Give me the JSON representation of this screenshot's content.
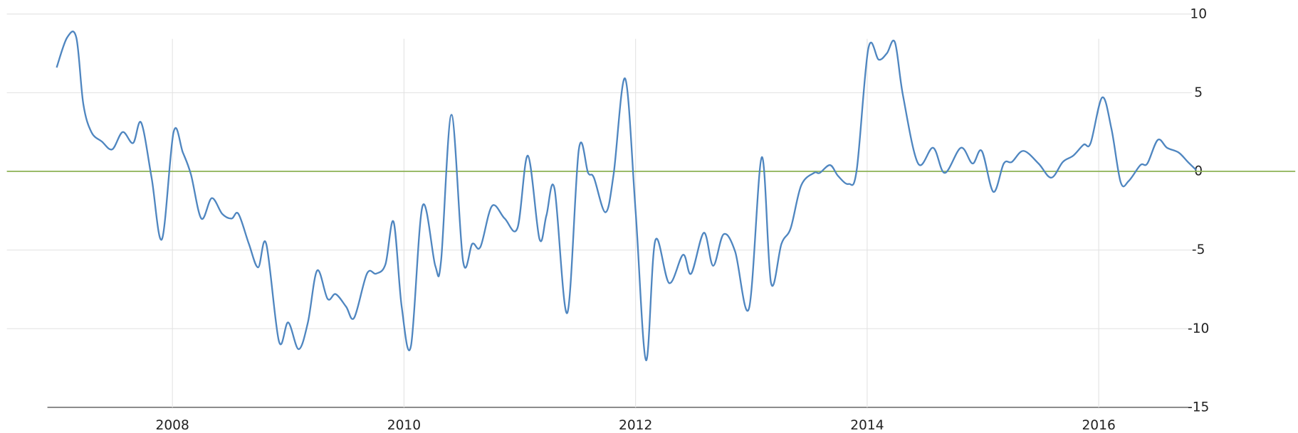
{
  "chart_data": {
    "type": "line",
    "x": [
      2007.0,
      2007.09,
      2007.17,
      2007.23,
      2007.3,
      2007.39,
      2007.48,
      2007.57,
      2007.66,
      2007.73,
      2007.82,
      2007.91,
      2008.01,
      2008.09,
      2008.16,
      2008.25,
      2008.34,
      2008.43,
      2008.51,
      2008.57,
      2008.66,
      2008.74,
      2008.81,
      2008.92,
      2009.0,
      2009.09,
      2009.17,
      2009.25,
      2009.34,
      2009.41,
      2009.5,
      2009.57,
      2009.68,
      2009.76,
      2009.84,
      2009.91,
      2009.98,
      2010.06,
      2010.16,
      2010.27,
      2010.32,
      2010.41,
      2010.51,
      2010.59,
      2010.66,
      2010.76,
      2010.87,
      2010.98,
      2011.07,
      2011.17,
      2011.23,
      2011.3,
      2011.41,
      2011.51,
      2011.59,
      2011.64,
      2011.74,
      2011.81,
      2011.91,
      2012.0,
      2012.09,
      2012.17,
      2012.29,
      2012.41,
      2012.48,
      2012.59,
      2012.67,
      2012.76,
      2012.86,
      2012.98,
      2013.09,
      2013.17,
      2013.26,
      2013.34,
      2013.43,
      2013.54,
      2013.59,
      2013.68,
      2013.75,
      2013.84,
      2013.91,
      2014.01,
      2014.1,
      2014.17,
      2014.24,
      2014.31,
      2014.44,
      2014.57,
      2014.67,
      2014.81,
      2014.91,
      2014.99,
      2015.09,
      2015.18,
      2015.25,
      2015.35,
      2015.48,
      2015.59,
      2015.69,
      2015.78,
      2015.87,
      2015.93,
      2016.03,
      2016.11,
      2016.19,
      2016.26,
      2016.36,
      2016.42,
      2016.51,
      2016.59,
      2016.69,
      2016.77,
      2016.84
    ],
    "series": [
      {
        "color": "#4f86c0",
        "values": [
          6.6,
          8.5,
          8.5,
          4.3,
          2.5,
          1.9,
          1.4,
          2.5,
          1.8,
          3.1,
          -0.4,
          -4.3,
          2.5,
          1.2,
          -0.2,
          -3.0,
          -1.7,
          -2.7,
          -3.0,
          -2.7,
          -4.6,
          -6.1,
          -4.6,
          -10.8,
          -9.6,
          -11.3,
          -9.6,
          -6.3,
          -8.1,
          -7.8,
          -8.6,
          -9.3,
          -6.5,
          -6.5,
          -5.9,
          -3.2,
          -8.6,
          -11.1,
          -2.2,
          -6.0,
          -5.7,
          3.6,
          -5.7,
          -4.6,
          -4.8,
          -2.2,
          -3.0,
          -3.6,
          1.0,
          -4.3,
          -2.8,
          -1.1,
          -9.0,
          1.4,
          -0.1,
          -0.4,
          -2.6,
          -0.2,
          5.9,
          -2.5,
          -12.0,
          -4.4,
          -7.1,
          -5.3,
          -6.5,
          -3.9,
          -6.0,
          -4.0,
          -5.1,
          -8.7,
          0.9,
          -7.1,
          -4.6,
          -3.6,
          -0.9,
          -0.1,
          -0.1,
          0.4,
          -0.3,
          -0.8,
          0.1,
          7.8,
          7.1,
          7.5,
          8.2,
          4.8,
          0.5,
          1.5,
          -0.1,
          1.5,
          0.5,
          1.3,
          -1.3,
          0.5,
          0.6,
          1.3,
          0.5,
          -0.4,
          0.6,
          1.0,
          1.7,
          1.8,
          4.7,
          2.7,
          -0.7,
          -0.6,
          0.4,
          0.5,
          2.0,
          1.5,
          1.2,
          0.6,
          0.1
        ]
      }
    ],
    "xlim": [
      2006.57,
      2016.84
    ],
    "xticks": [
      2008,
      2010,
      2012,
      2014,
      2016
    ],
    "ylim": [
      -15,
      10
    ],
    "yticks": [
      -15,
      -10,
      -5,
      0,
      5,
      10
    ],
    "grid": true,
    "zero_line": true,
    "zero_line_color": "#8db255"
  }
}
